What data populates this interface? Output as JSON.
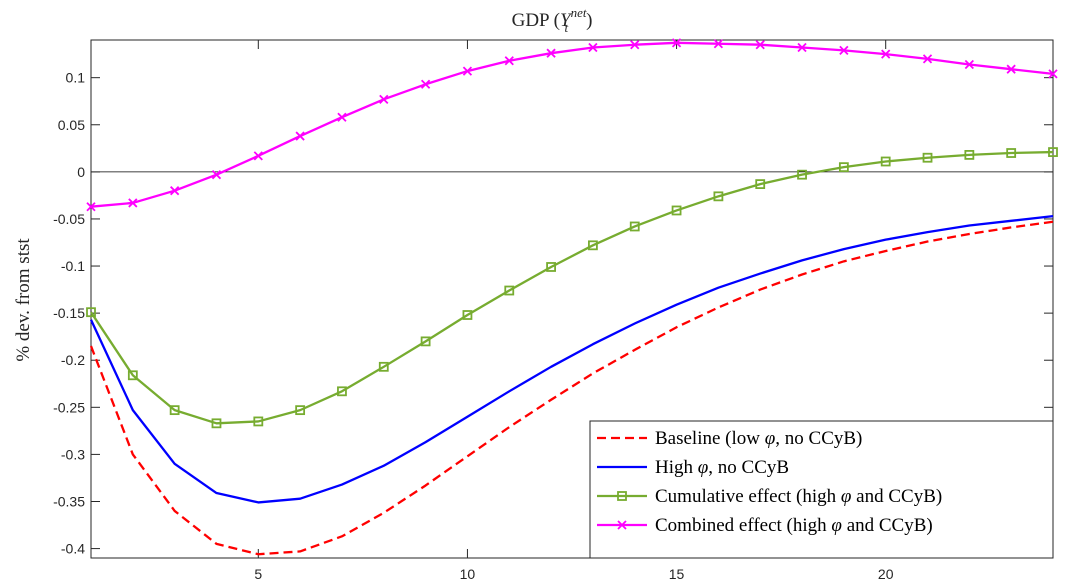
{
  "chart_data": {
    "type": "line",
    "title": "GDP (Y_t^net)",
    "title_main": "GDP (",
    "title_symbol": "Y",
    "title_sub": "t",
    "title_sup": "net",
    "title_close": ")",
    "xlabel": "",
    "ylabel": "% dev. from stst",
    "xlim": [
      1,
      24
    ],
    "ylim": [
      -0.41,
      0.14
    ],
    "xticks": [
      5,
      10,
      15,
      20
    ],
    "yticks": [
      0.1,
      0.05,
      0,
      -0.05,
      -0.1,
      -0.15,
      -0.2,
      -0.25,
      -0.3,
      -0.35,
      -0.4
    ],
    "ytick_labels": [
      "0.1",
      "0.05",
      "0",
      "-0.05",
      "-0.1",
      "-0.15",
      "-0.2",
      "-0.25",
      "-0.3",
      "-0.35",
      "-0.4"
    ],
    "zero_line": true,
    "grid": false,
    "legend_position": "bottom-right",
    "x": [
      1,
      2,
      3,
      4,
      5,
      6,
      7,
      8,
      9,
      10,
      11,
      12,
      13,
      14,
      15,
      16,
      17,
      18,
      19,
      20,
      21,
      22,
      23,
      24
    ],
    "series": [
      {
        "name": "Baseline (low φ, no CCyB)",
        "color": "#ff0000",
        "style": "dashed",
        "marker": "none",
        "values": [
          -0.185,
          -0.3,
          -0.36,
          -0.395,
          -0.406,
          -0.403,
          -0.387,
          -0.362,
          -0.333,
          -0.302,
          -0.271,
          -0.242,
          -0.214,
          -0.189,
          -0.165,
          -0.144,
          -0.125,
          -0.109,
          -0.095,
          -0.084,
          -0.074,
          -0.066,
          -0.059,
          -0.053
        ]
      },
      {
        "name": "High φ, no CCyB",
        "color": "#0000ff",
        "style": "solid",
        "marker": "none",
        "values": [
          -0.157,
          -0.253,
          -0.31,
          -0.341,
          -0.351,
          -0.347,
          -0.332,
          -0.312,
          -0.287,
          -0.26,
          -0.233,
          -0.207,
          -0.183,
          -0.161,
          -0.141,
          -0.123,
          -0.108,
          -0.094,
          -0.082,
          -0.072,
          -0.064,
          -0.057,
          -0.052,
          -0.047
        ]
      },
      {
        "name": "Cumulative effect (high φ and CCyB)",
        "color": "#77ac30",
        "style": "solid",
        "marker": "square",
        "values": [
          -0.149,
          -0.216,
          -0.253,
          -0.267,
          -0.265,
          -0.253,
          -0.233,
          -0.207,
          -0.18,
          -0.152,
          -0.126,
          -0.101,
          -0.078,
          -0.058,
          -0.041,
          -0.026,
          -0.013,
          -0.003,
          0.005,
          0.011,
          0.015,
          0.018,
          0.02,
          0.021
        ]
      },
      {
        "name": "Combined effect (high φ and CCyB)",
        "color": "#ff00ff",
        "style": "solid",
        "marker": "x",
        "values": [
          -0.037,
          -0.033,
          -0.02,
          -0.003,
          0.017,
          0.038,
          0.058,
          0.077,
          0.093,
          0.107,
          0.118,
          0.126,
          0.132,
          0.135,
          0.137,
          0.136,
          0.135,
          0.132,
          0.129,
          0.125,
          0.12,
          0.114,
          0.109,
          0.104
        ]
      }
    ],
    "legend": [
      {
        "before": "Baseline (low ",
        "greek": "φ",
        "after": ", no CCyB)"
      },
      {
        "before": "High ",
        "greek": "φ",
        "after": ", no CCyB"
      },
      {
        "before": "Cumulative effect (high ",
        "greek": "φ",
        "after": " and CCyB)"
      },
      {
        "before": "Combined effect (high ",
        "greek": "φ",
        "after": " and CCyB)"
      }
    ]
  }
}
